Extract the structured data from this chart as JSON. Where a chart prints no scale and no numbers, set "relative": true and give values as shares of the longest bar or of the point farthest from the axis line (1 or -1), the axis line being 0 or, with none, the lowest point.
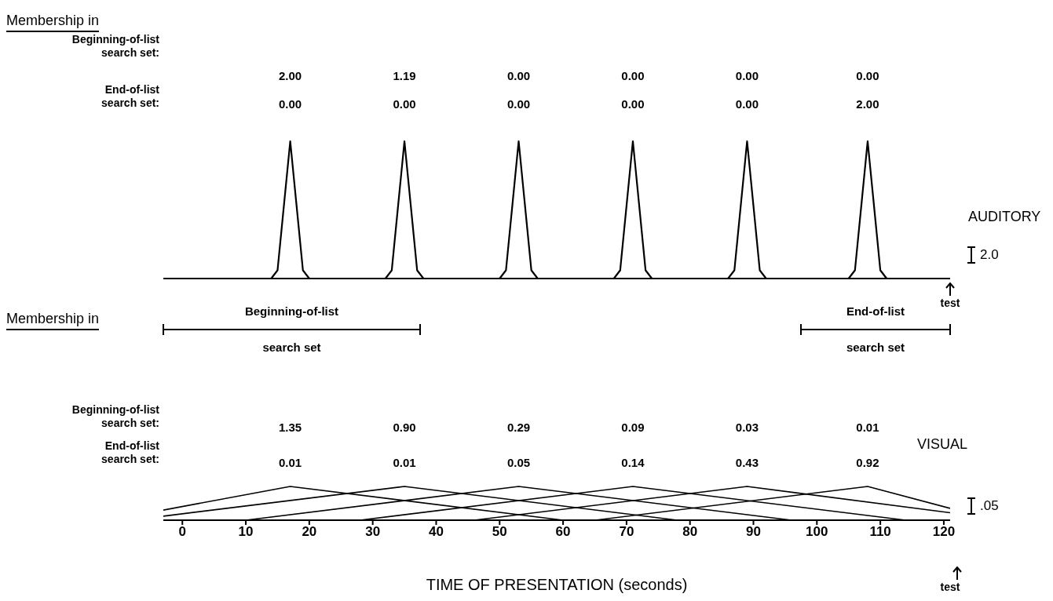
{
  "chart_data": [
    {
      "type": "line",
      "relative": true,
      "xlim": [
        -3,
        121
      ],
      "xticks": [
        0,
        10,
        20,
        30,
        40,
        50,
        60,
        70,
        80,
        90,
        100,
        110,
        120
      ],
      "tick_labels": false,
      "annotations": [
        "Membership in",
        "Beginning-of-list search set:",
        "2.00",
        "1.19",
        "0.00",
        "0.00",
        "0.00",
        "0.00",
        "End-of-list search set:",
        "0.00",
        "0.00",
        "0.00",
        "0.00",
        "0.00",
        "2.00",
        "2.0",
        "test",
        "AUDITORY"
      ],
      "series": [
        {
          "color": "#000000",
          "x": [
            14,
            15,
            17,
            19,
            20
          ],
          "values": [
            0,
            0.06,
            1,
            0.06,
            0
          ]
        },
        {
          "color": "#000000",
          "x": [
            32,
            33,
            35,
            37,
            38
          ],
          "values": [
            0,
            0.06,
            1,
            0.06,
            0
          ]
        },
        {
          "color": "#000000",
          "x": [
            50,
            51,
            53,
            55,
            56
          ],
          "values": [
            0,
            0.06,
            1,
            0.06,
            0
          ]
        },
        {
          "color": "#000000",
          "x": [
            68,
            69,
            71,
            73,
            74
          ],
          "values": [
            0,
            0.06,
            1,
            0.06,
            0
          ]
        },
        {
          "color": "#000000",
          "x": [
            86,
            87,
            89,
            91,
            92
          ],
          "values": [
            0,
            0.06,
            1,
            0.06,
            0
          ]
        },
        {
          "color": "#000000",
          "x": [
            105,
            106,
            108,
            110,
            111
          ],
          "values": [
            0,
            0.06,
            1,
            0.06,
            0
          ]
        }
      ]
    },
    {
      "type": "line",
      "xlabel": "TIME OF PRESENTATION (seconds)",
      "relative": true,
      "xlim": [
        -3,
        121
      ],
      "xticks": [
        0,
        10,
        20,
        30,
        40,
        50,
        60,
        70,
        80,
        90,
        100,
        110,
        120
      ],
      "annotations": [
        "Membership in",
        "Beginning-of-list search set:",
        "1.35",
        "0.90",
        "0.29",
        "0.09",
        "0.03",
        "0.01",
        "End-of-list search set:",
        "0.01",
        "0.01",
        "0.05",
        "0.14",
        "0.43",
        "0.92",
        ".05",
        "test",
        "VISUAL",
        "Beginning-of-list search set",
        "End-of-list search set"
      ],
      "series": [
        {
          "color": "#000000",
          "x": [
            -3,
            17,
            60,
            121
          ],
          "values": [
            0.3,
            1,
            0,
            0
          ]
        },
        {
          "color": "#000000",
          "x": [
            -3,
            35,
            78,
            121
          ],
          "values": [
            0.12,
            1,
            0,
            0
          ]
        },
        {
          "color": "#000000",
          "x": [
            -3,
            10,
            53,
            96,
            121
          ],
          "values": [
            0,
            0,
            1,
            0,
            0
          ]
        },
        {
          "color": "#000000",
          "x": [
            -3,
            28,
            71,
            114,
            121
          ],
          "values": [
            0,
            0,
            1,
            0,
            0
          ]
        },
        {
          "color": "#000000",
          "x": [
            -3,
            46,
            89,
            121
          ],
          "values": [
            0,
            0,
            1,
            0.22
          ]
        },
        {
          "color": "#000000",
          "x": [
            -3,
            65,
            108,
            121
          ],
          "values": [
            0,
            0,
            1,
            0.35
          ]
        }
      ]
    }
  ]
}
